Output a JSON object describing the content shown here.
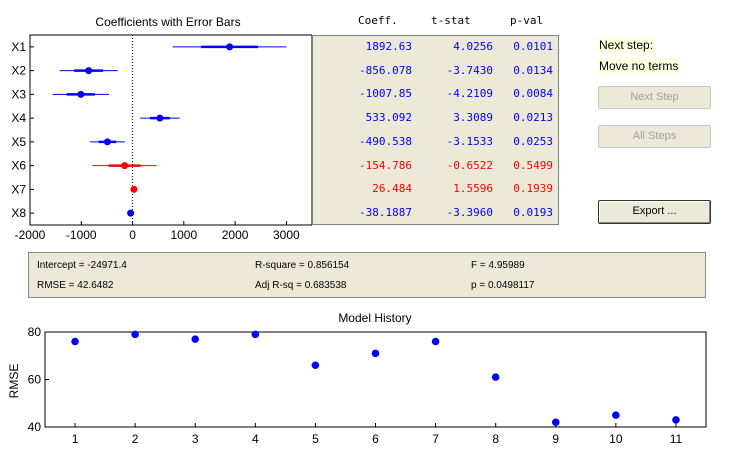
{
  "coef_chart": {
    "title": "Coefficients with Error Bars",
    "terms": [
      "X1",
      "X2",
      "X3",
      "X4",
      "X5",
      "X6",
      "X7",
      "X8"
    ],
    "xlim": [
      -2000,
      3500
    ],
    "xticks": [
      -2000,
      -1000,
      0,
      1000,
      2000,
      3000
    ],
    "points": [
      {
        "term": "X1",
        "coeff": 1892.63,
        "low": 780,
        "high": 3000,
        "ci_low": 780,
        "ci_high": 3000,
        "in_model": true
      },
      {
        "term": "X2",
        "coeff": -856.078,
        "low": -1420,
        "high": -290,
        "in_model": true
      },
      {
        "term": "X3",
        "coeff": -1007.85,
        "low": -1560,
        "high": -460,
        "in_model": true
      },
      {
        "term": "X4",
        "coeff": 533.092,
        "low": 150,
        "high": 920,
        "in_model": true
      },
      {
        "term": "X5",
        "coeff": -490.538,
        "low": -830,
        "high": -150,
        "in_model": true
      },
      {
        "term": "X6",
        "coeff": -154.786,
        "low": -780,
        "high": 470,
        "in_model": false
      },
      {
        "term": "X7",
        "coeff": 26.484,
        "low": 0,
        "high": 55,
        "in_model": false
      },
      {
        "term": "X8",
        "coeff": -38.1887,
        "low": -60,
        "high": -15,
        "in_model": true
      }
    ],
    "colors": {
      "in_model": "#0000ff",
      "out_model": "#ff0000"
    }
  },
  "table": {
    "headers": {
      "coeff": "Coeff.",
      "tstat": "t-stat",
      "pval": "p-val"
    },
    "rows": [
      {
        "coeff": "1892.63",
        "tstat": "4.0256",
        "pval": "0.0101",
        "color": "#0000ff"
      },
      {
        "coeff": "-856.078",
        "tstat": "-3.7430",
        "pval": "0.0134",
        "color": "#0000ff"
      },
      {
        "coeff": "-1007.85",
        "tstat": "-4.2109",
        "pval": "0.0084",
        "color": "#0000ff"
      },
      {
        "coeff": "533.092",
        "tstat": "3.3089",
        "pval": "0.0213",
        "color": "#0000ff"
      },
      {
        "coeff": "-490.538",
        "tstat": "-3.1533",
        "pval": "0.0253",
        "color": "#0000ff"
      },
      {
        "coeff": "-154.786",
        "tstat": "-0.6522",
        "pval": "0.5499",
        "color": "#ff0000"
      },
      {
        "coeff": "26.484",
        "tstat": "1.5596",
        "pval": "0.1939",
        "color": "#ff0000"
      },
      {
        "coeff": "-38.1887",
        "tstat": "-3.3960",
        "pval": "0.0193",
        "color": "#0000ff"
      }
    ]
  },
  "side": {
    "next_step_label": "Next step:",
    "next_step_value": "Move no terms",
    "next_step_button": "Next Step",
    "all_steps_button": "All Steps",
    "export_button": "Export ..."
  },
  "stats": {
    "intercept": "Intercept = -24971.4",
    "rmse": "RMSE = 42.6482",
    "rsquare": "R-square = 0.856154",
    "adjrsq": "Adj R-sq = 0.683538",
    "f": "F = 4.95989",
    "p": "p = 0.0498117"
  },
  "chart_data": {
    "type": "scatter",
    "title": "Model History",
    "ylabel": "RMSE",
    "xlabel": "",
    "x": [
      1,
      2,
      3,
      4,
      5,
      6,
      7,
      8,
      9,
      10,
      11
    ],
    "y": [
      76,
      79,
      77,
      79,
      66,
      71,
      76,
      61,
      42,
      45,
      43
    ],
    "xlim": [
      0.5,
      11.5
    ],
    "ylim": [
      40,
      80
    ],
    "xticks": [
      1,
      2,
      3,
      4,
      5,
      6,
      7,
      8,
      9,
      10,
      11
    ],
    "yticks": [
      40,
      60,
      80
    ],
    "color": "#0000ff",
    "grid": false
  }
}
